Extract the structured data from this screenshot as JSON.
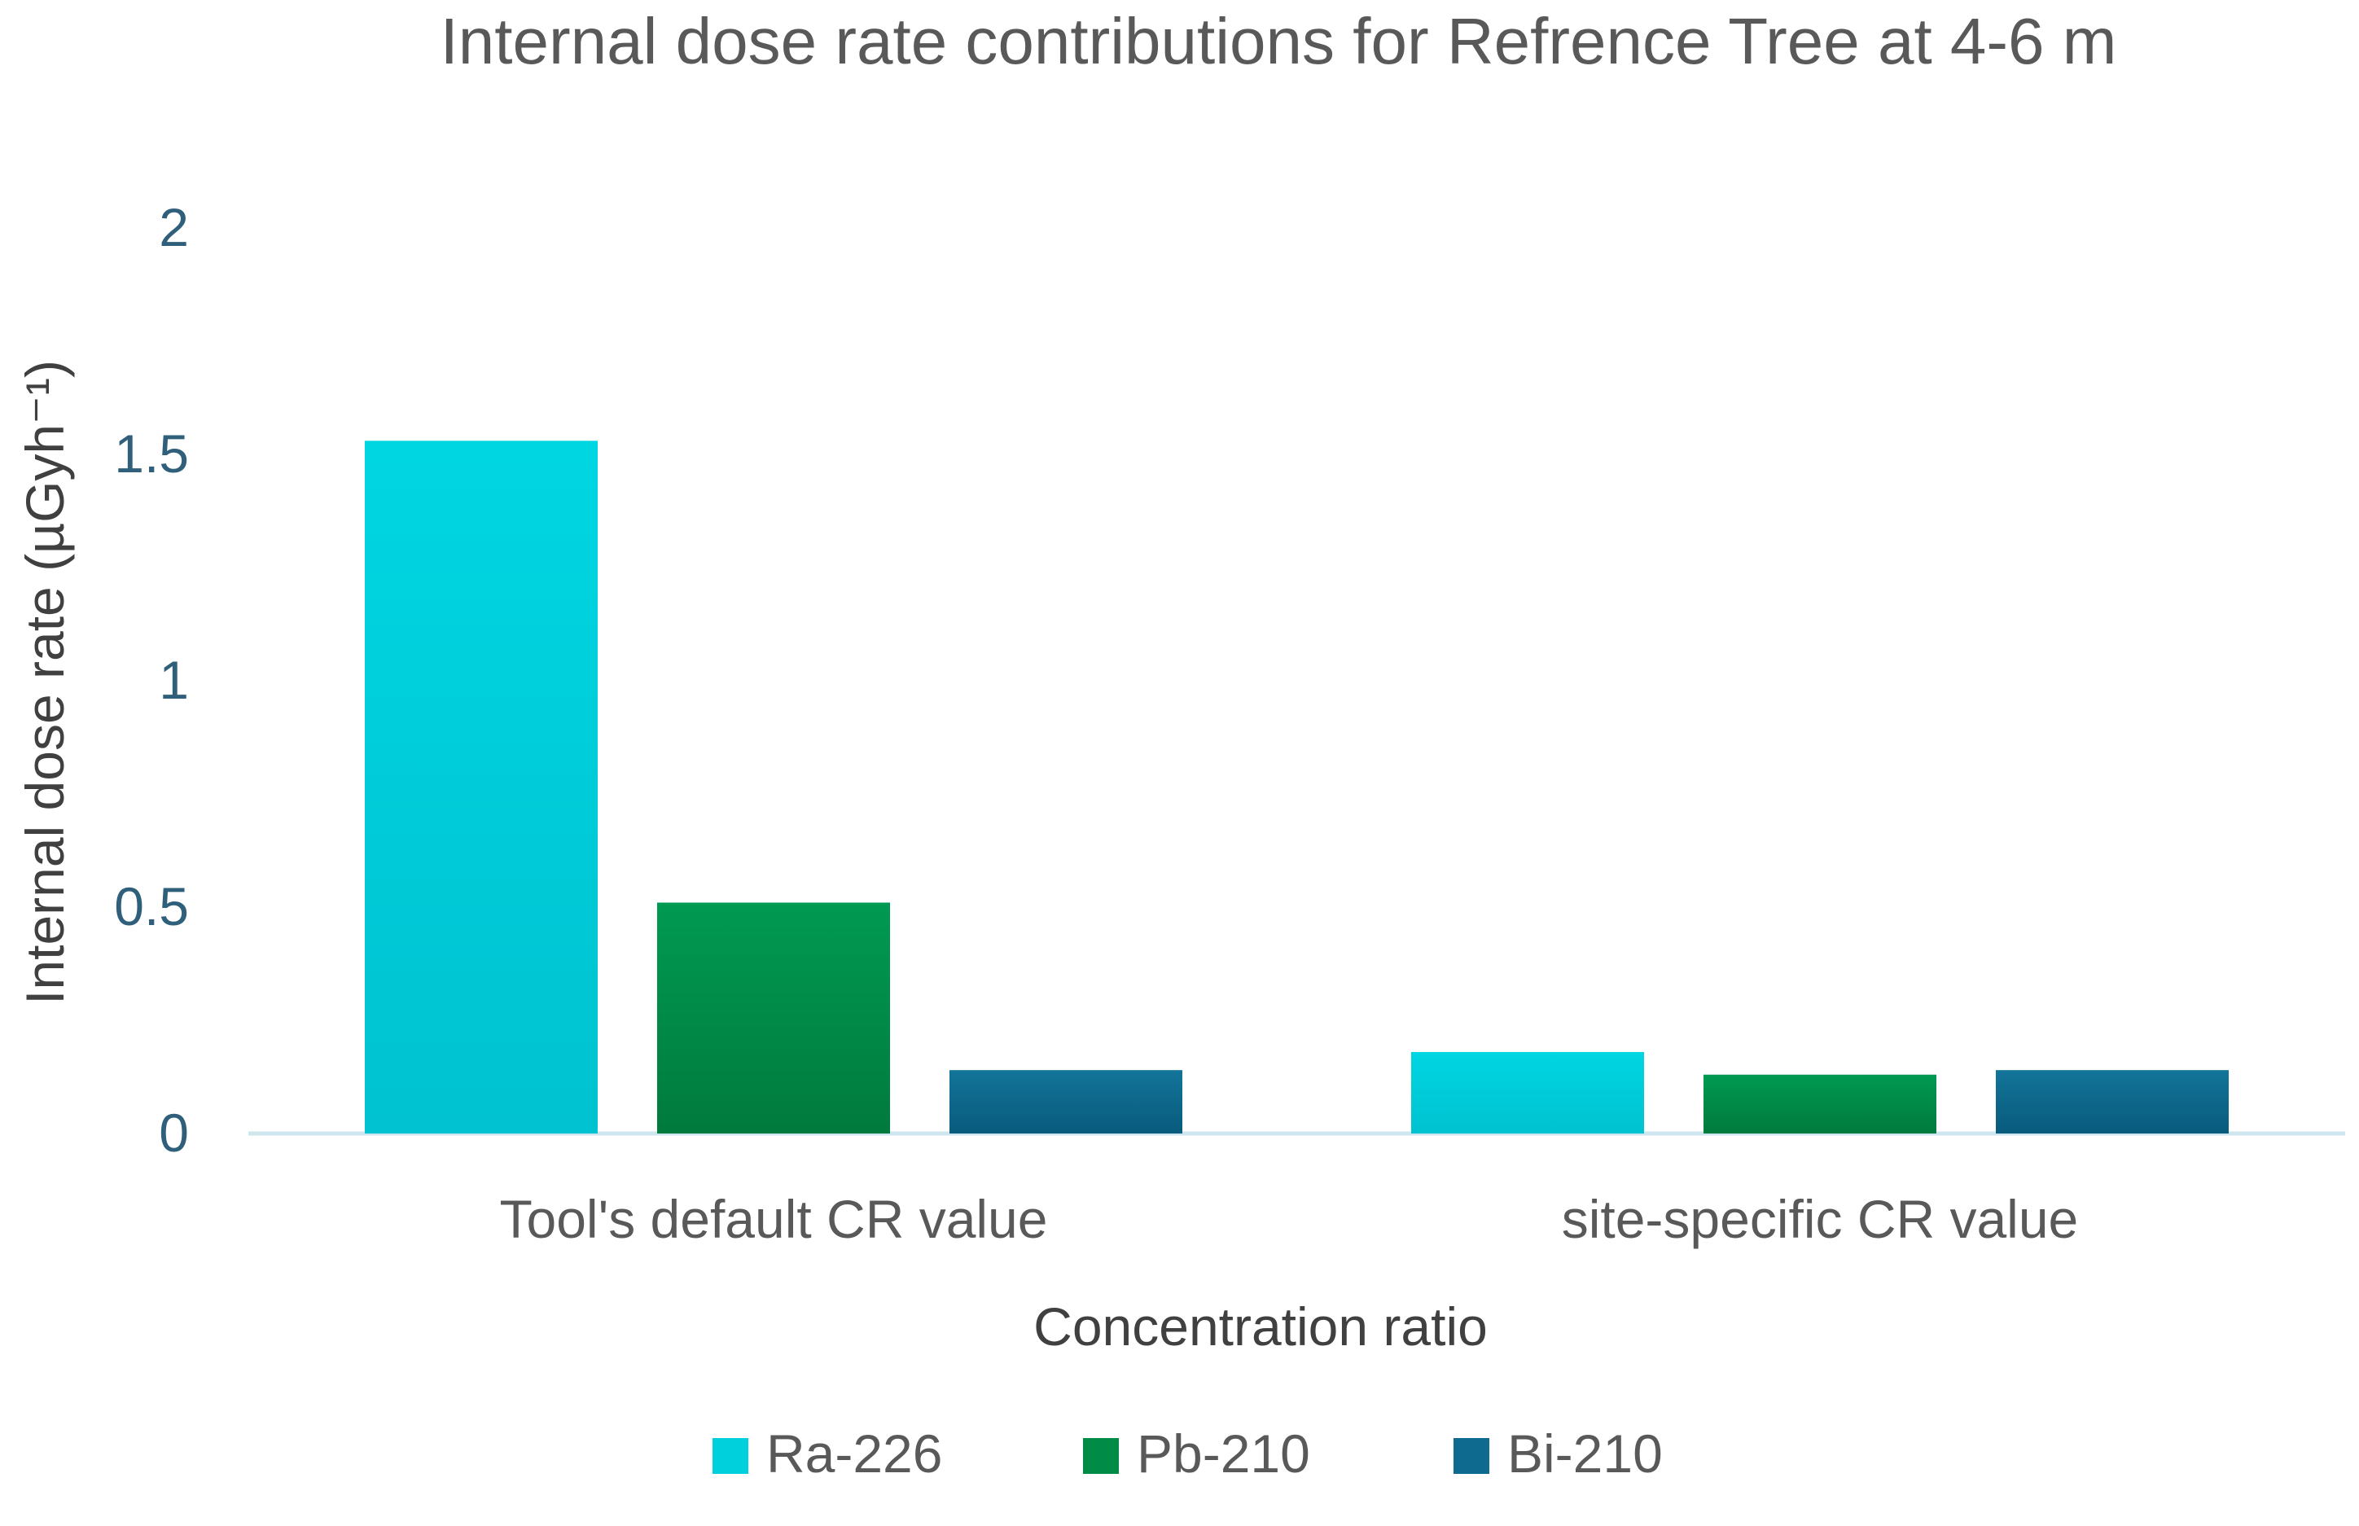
{
  "chart_data": {
    "type": "bar",
    "title": "Internal dose rate contributions for Refrence Tree at 4-6 m",
    "xlabel": "Concentration ratio",
    "ylabel": "Internal dose rate (µGyh⁻¹)",
    "categories": [
      "Tool's default CR value",
      "site-specific CR value"
    ],
    "series": [
      {
        "name": "Ra-226",
        "color": "#00cfdc",
        "values": [
          1.53,
          0.18
        ]
      },
      {
        "name": "Pb-210",
        "color": "#008c47",
        "values": [
          0.51,
          0.13
        ]
      },
      {
        "name": "Bi-210",
        "color": "#0e6a8e",
        "values": [
          0.14,
          0.14
        ]
      }
    ],
    "ylim": [
      0,
      2
    ],
    "yticks": [
      "0",
      "0.5",
      "1",
      "1.5",
      "2"
    ],
    "grid": false,
    "legend_position": "bottom"
  }
}
